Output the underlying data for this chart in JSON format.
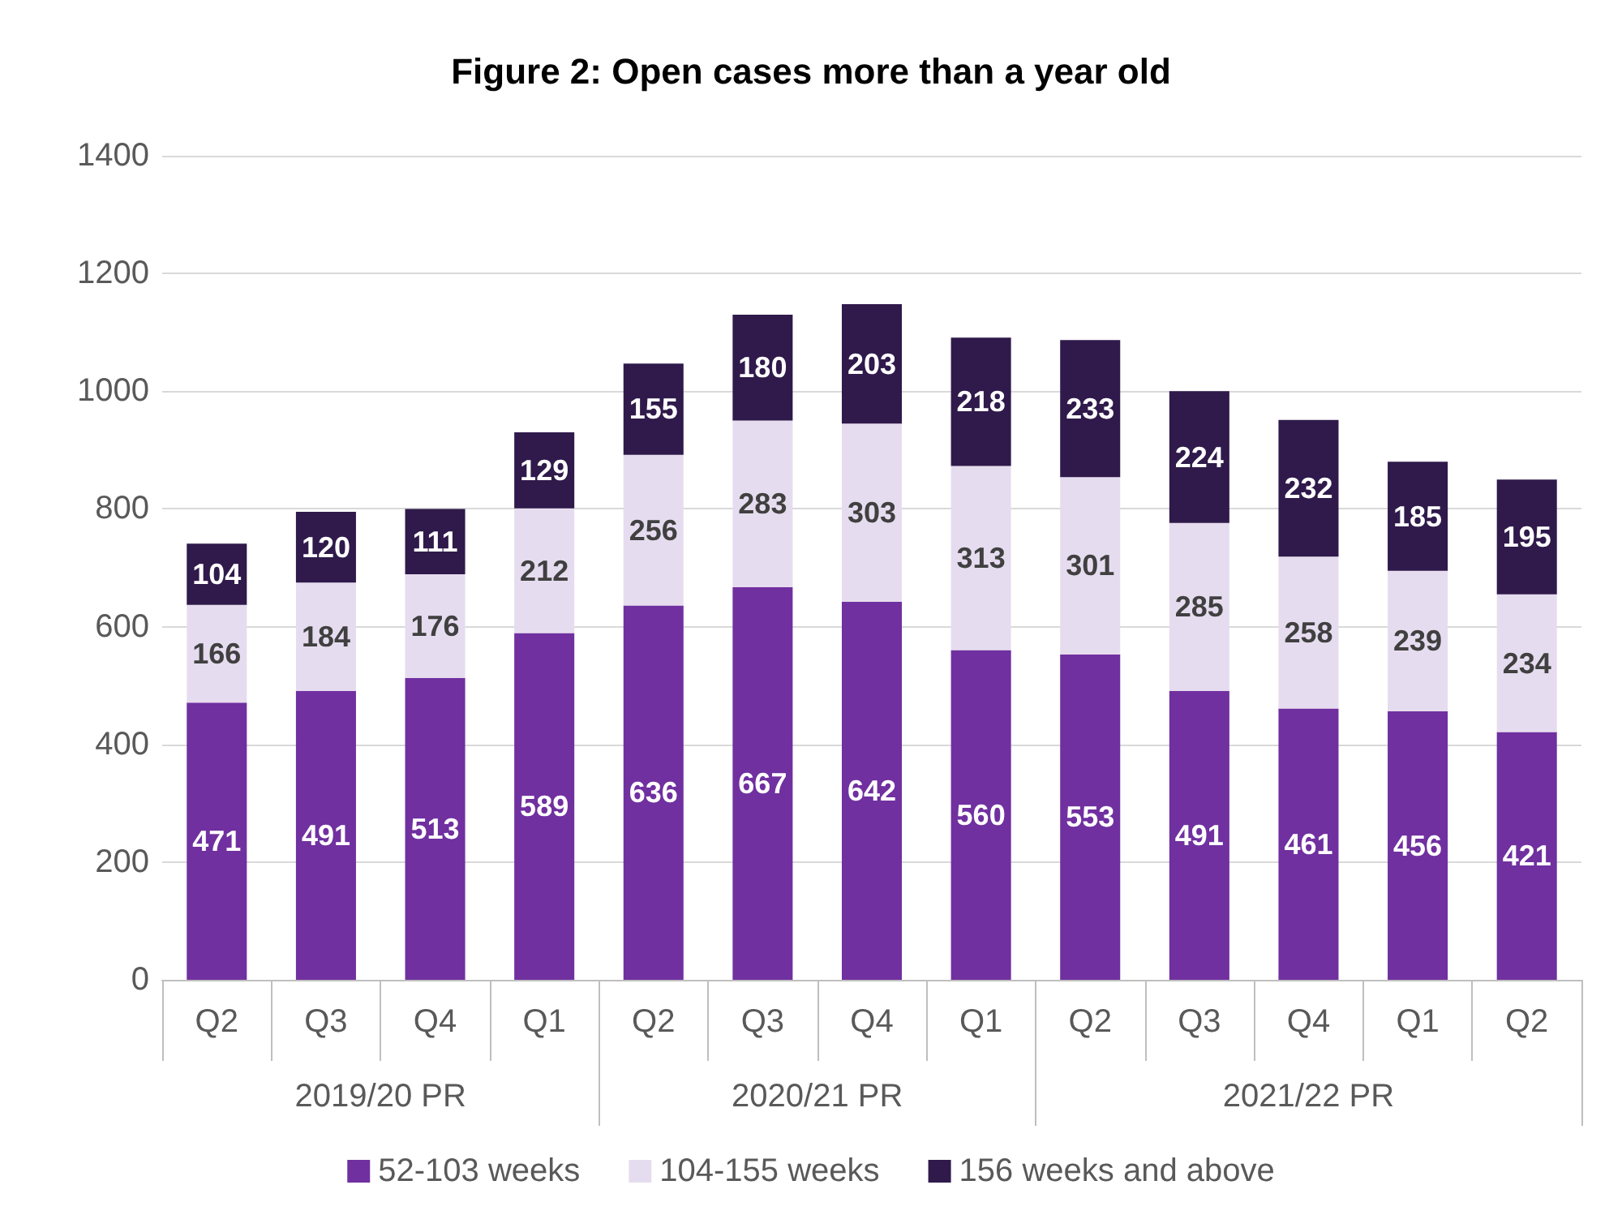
{
  "chart_data": {
    "type": "bar",
    "title": "Figure 2: Open cases more than a year old",
    "stacked": true,
    "data_labels": true,
    "grid": "y",
    "legend": "bottom",
    "categories": [
      "Q2",
      "Q3",
      "Q4",
      "Q1",
      "Q2",
      "Q3",
      "Q4",
      "Q1",
      "Q2",
      "Q3",
      "Q4",
      "Q1",
      "Q2"
    ],
    "annotations": [
      "2019/20 PR",
      "2020/21 PR",
      "2021/22 PR"
    ],
    "ylim": [
      0,
      1400
    ],
    "yticks": [
      0,
      200,
      400,
      600,
      800,
      1000,
      1200,
      1400
    ],
    "series": [
      {
        "name": "52-103 weeks",
        "color": "#7030a0",
        "values": [
          471,
          491,
          513,
          589,
          636,
          667,
          642,
          560,
          553,
          491,
          461,
          456,
          421
        ]
      },
      {
        "name": "104-155 weeks",
        "color": "#e6dcef",
        "values": [
          166,
          184,
          176,
          212,
          256,
          283,
          303,
          313,
          301,
          285,
          258,
          239,
          234
        ]
      },
      {
        "name": "156 weeks and above",
        "color": "#2f1a4b",
        "values": [
          104,
          120,
          111,
          129,
          155,
          180,
          203,
          218,
          233,
          224,
          232,
          185,
          195
        ]
      }
    ]
  }
}
